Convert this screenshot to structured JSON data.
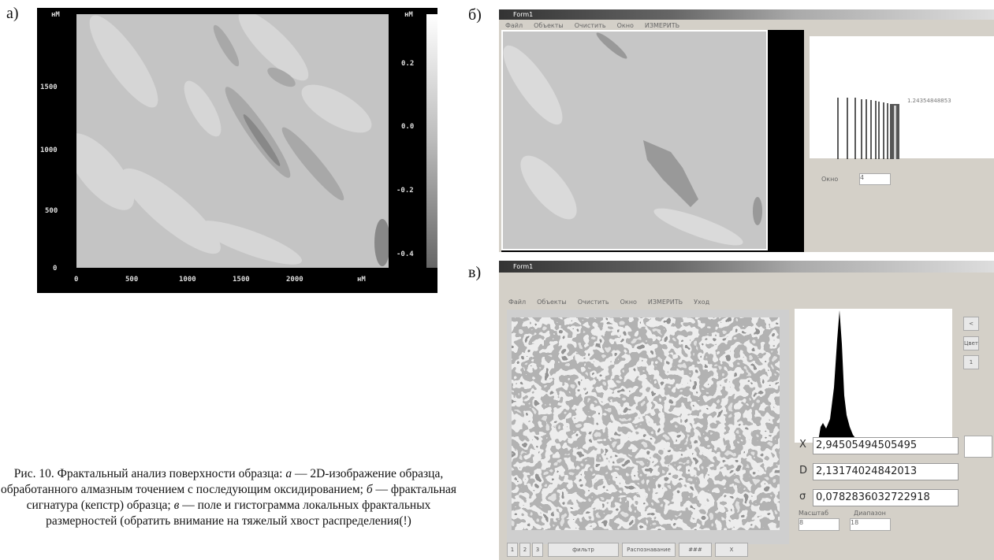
{
  "figure": {
    "panel_a": {
      "label": "а)",
      "unit_top": "нМ",
      "y_ticks": [
        "1500",
        "1000",
        "500",
        "0"
      ],
      "x_ticks": [
        "0",
        "500",
        "1000",
        "1500",
        "2000"
      ],
      "x_unit": "нМ",
      "colorbar_unit": "нМ",
      "colorbar_ticks": [
        "0.2",
        "0.0",
        "-0.2",
        "-0.4"
      ]
    },
    "panel_b": {
      "label": "б)",
      "window_title": "Form1",
      "menu": [
        "Файл",
        "Объекты",
        "Очистить",
        "Окно",
        "ИЗМЕРИТЬ"
      ],
      "signature_value": "1.24354848853",
      "window_field_label": "Окно",
      "window_field_value": "4"
    },
    "panel_c": {
      "label": "в)",
      "window_title": "Form1",
      "menu": [
        "Файл",
        "Объекты",
        "Очистить",
        "Окно",
        "ИЗМЕРИТЬ",
        "Уход"
      ],
      "side_buttons": [
        "<",
        "Цвет",
        "1"
      ],
      "fields": [
        {
          "label": "X",
          "value": "2,94505494505495"
        },
        {
          "label": "D",
          "value": "2,13174024842013"
        },
        {
          "label": "σ",
          "value": "0,0782836032722918"
        }
      ],
      "scale_label": "Масштаб",
      "range_label": "Диапазон",
      "scale_value": "8",
      "range_value": "18",
      "bottom_buttons": [
        "1",
        "2",
        "3",
        "фильтр",
        "Распознавание",
        "###",
        "X"
      ]
    }
  },
  "caption": {
    "title": "Рис. 10. Фрактальный анализ поверхности образца:",
    "items": [
      {
        "letter": "а",
        "text": "— 2D-изображение образца, обработанного алмазным точением с последующим оксидированием;"
      },
      {
        "letter": "б",
        "text": "— фрактальная сигнатура (кепстр) образца;"
      },
      {
        "letter": "в",
        "text": "— поле и гистограмма локальных фрактальных размерностей (обратить внимание на тяжелый хвост распределения(!)"
      }
    ]
  }
}
